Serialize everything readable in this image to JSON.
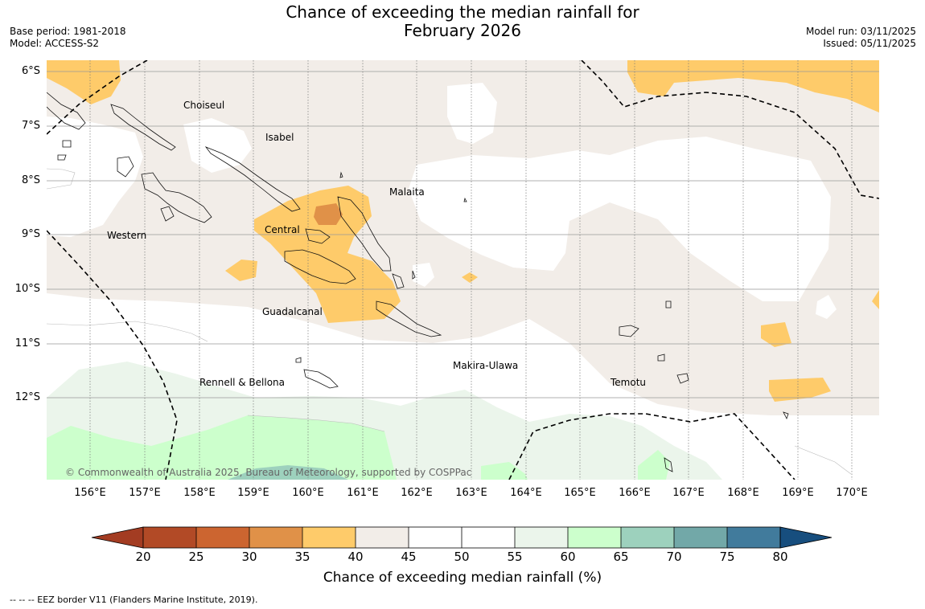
{
  "title": {
    "line1": "Chance of exceeding the median rainfall for",
    "line2": "February 2026"
  },
  "meta": {
    "base_period": "Base period: 1981-2018",
    "model": "Model: ACCESS-S2",
    "model_run": "Model run: 03/11/2025",
    "issued": "Issued: 05/11/2025"
  },
  "map": {
    "copyright": "© Commonwealth of Australia 2025, Bureau of Meteorology, supported by COSPPac",
    "lat_labels": [
      "6°S",
      "7°S",
      "8°S",
      "9°S",
      "10°S",
      "11°S",
      "12°S"
    ],
    "lon_labels": [
      "156°E",
      "157°E",
      "158°E",
      "159°E",
      "160°E",
      "161°E",
      "162°E",
      "163°E",
      "164°E",
      "165°E",
      "166°E",
      "167°E",
      "168°E",
      "169°E",
      "170°E"
    ],
    "provinces": [
      "Choiseul",
      "Isabel",
      "Malaita",
      "Western",
      "Central",
      "Guadalcanal",
      "Makira-Ulawa",
      "Rennell & Bellona",
      "Temotu"
    ]
  },
  "colorbar": {
    "ticks": [
      "20",
      "25",
      "30",
      "35",
      "40",
      "45",
      "50",
      "55",
      "60",
      "65",
      "70",
      "75",
      "80"
    ],
    "colors": [
      "#a33c22",
      "#b24a26",
      "#cc6530",
      "#e09148",
      "#fecb6a",
      "#f2ede8",
      "#ffffff",
      "#ffffff",
      "#ebf5eb",
      "#ccffcc",
      "#9dd1bd",
      "#72a8a8",
      "#417b9c",
      "#174e7e"
    ],
    "label": "Chance of exceeding median rainfall (%)"
  },
  "footnote": "--  --  -- EEZ border V11 (Flanders Marine Institute, 2019).",
  "colors": {
    "below_35_40": "#fecb6a",
    "below_30_35": "#e09148",
    "near_40_45": "#f2ede8",
    "above_55_60": "#ebf5eb",
    "above_60_65": "#ccffcc",
    "above_65_70": "#9dd1bd"
  }
}
